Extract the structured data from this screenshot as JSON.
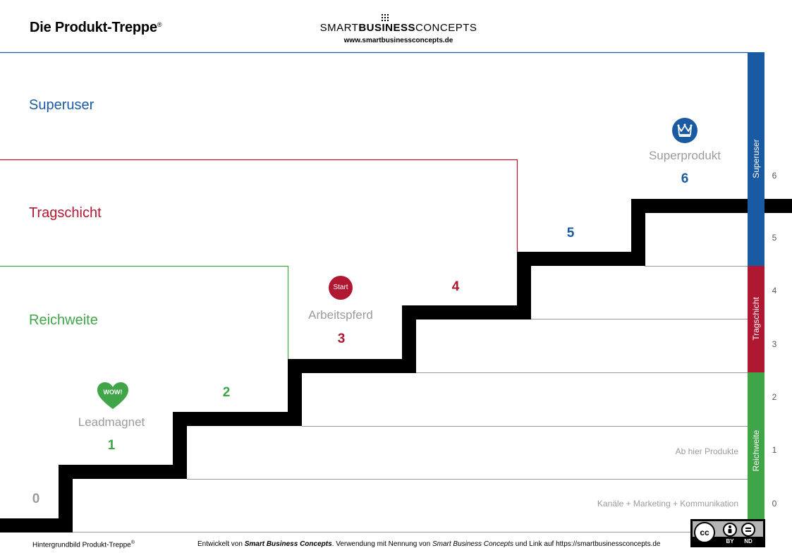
{
  "header": {
    "title": "Die Produkt-Treppe",
    "title_mark": "®",
    "brand_part1": "SMART",
    "brand_part2": "BUSINESS",
    "brand_part3": "CONCEPTS",
    "brand_url": "www.smartbusinessconcepts.de"
  },
  "bands": {
    "superuser": "Superuser",
    "tragschicht": "Tragschicht",
    "reichweite": "Reichweite"
  },
  "steps": {
    "s0": "0",
    "s1": "1",
    "s2": "2",
    "s3": "3",
    "s4": "4",
    "s5": "5",
    "s6": "6"
  },
  "products": {
    "leadmagnet": "Leadmagnet",
    "arbeitspferd": "Arbeitspferd",
    "superprodukt": "Superprodukt"
  },
  "badges": {
    "wow": "WOW!",
    "start": "Start"
  },
  "notes": {
    "ab_hier": "Ab hier Produkte",
    "kanaele": "Kanäle + Marketing + Kommunikation"
  },
  "sidebar": {
    "superuser": "Superuser",
    "tragschicht": "Tragschicht",
    "reichweite": "Reichweite",
    "levels": [
      "6",
      "5",
      "4",
      "3",
      "2",
      "1",
      "0"
    ]
  },
  "license": {
    "cc": "cc",
    "by": "BY",
    "nd": "ND"
  },
  "footer": {
    "left": "Hintergrundbild Produkt-Treppe",
    "left_mark": "®",
    "right_a": "Entwickelt von ",
    "right_b": "Smart Business Concepts",
    "right_c": ". Verwendung mit Nennung von ",
    "right_d": "Smart Business Concepts",
    "right_e": " und Link auf https://smartbusinessconcepts.de"
  },
  "colors": {
    "blue": "#1a5aa3",
    "red": "#b01731",
    "green": "#3fa548",
    "gray": "#9b9b9b"
  }
}
